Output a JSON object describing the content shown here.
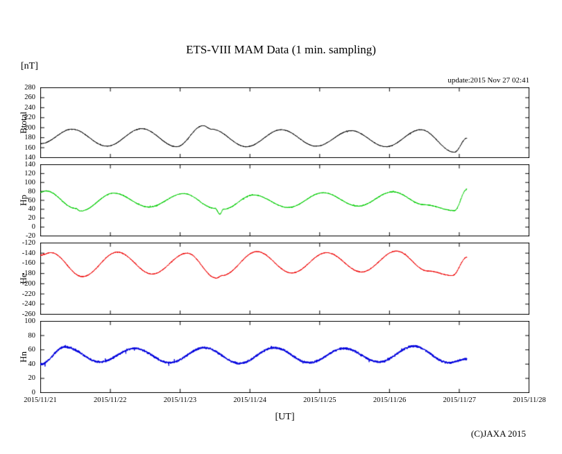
{
  "page": {
    "title": "ETS-VIII MAM Data (1 min. sampling)",
    "unit_label": "[nT]",
    "update_label": "update:2015 Nov 27 02:41",
    "xaxis_label": "[UT]",
    "copyright": "(C)JAXA 2015"
  },
  "chart_data": {
    "type": "line",
    "title": "ETS-VIII MAM Data (1 min. sampling)",
    "xlabel": "[UT]",
    "ylabel": "[nT]",
    "sampling": "1 min",
    "update": "2015 Nov 27 02:41",
    "legend_position": "none",
    "grid": false,
    "x_ticks": [
      "2015/11/21",
      "2015/11/22",
      "2015/11/23",
      "2015/11/24",
      "2015/11/25",
      "2015/11/26",
      "2015/11/27",
      "2015/11/28"
    ],
    "x_range_days": [
      0,
      7
    ],
    "data_end_day": 6.11,
    "panels": [
      {
        "name": "Btotal",
        "color": "#000000",
        "ylim": [
          140,
          280
        ],
        "yticks": [
          280,
          260,
          240,
          220,
          200,
          180,
          160,
          140
        ],
        "keyframes": [
          [
            0,
            168
          ],
          [
            0.45,
            197
          ],
          [
            0.95,
            163
          ],
          [
            1.45,
            198
          ],
          [
            1.95,
            162
          ],
          [
            2.33,
            204
          ],
          [
            2.45,
            197
          ],
          [
            2.95,
            162
          ],
          [
            3.45,
            196
          ],
          [
            3.95,
            163
          ],
          [
            4.45,
            194
          ],
          [
            4.95,
            162
          ],
          [
            5.45,
            196
          ],
          [
            5.93,
            151
          ],
          [
            6.11,
            179
          ]
        ],
        "noise": 0.9
      },
      {
        "name": "Hp",
        "color": "#00cc00",
        "ylim": [
          -20,
          140
        ],
        "yticks": [
          140,
          120,
          100,
          80,
          60,
          40,
          20,
          0,
          -20
        ],
        "keyframes": [
          [
            0,
            78
          ],
          [
            0.08,
            81
          ],
          [
            0.5,
            42
          ],
          [
            0.57,
            36
          ],
          [
            1.05,
            76
          ],
          [
            1.55,
            45
          ],
          [
            2.05,
            75
          ],
          [
            2.5,
            42
          ],
          [
            2.57,
            29
          ],
          [
            2.62,
            40
          ],
          [
            3.05,
            72
          ],
          [
            3.55,
            44
          ],
          [
            4.05,
            77
          ],
          [
            4.55,
            47
          ],
          [
            5.05,
            79
          ],
          [
            5.5,
            50
          ],
          [
            5.93,
            37
          ],
          [
            6.11,
            85
          ]
        ],
        "noise": 1.3
      },
      {
        "name": "He",
        "color": "#ee0000",
        "ylim": [
          -260,
          -120
        ],
        "yticks": [
          -120,
          -140,
          -160,
          -180,
          -200,
          -220,
          -240,
          -260
        ],
        "keyframes": [
          [
            0,
            -144
          ],
          [
            0.15,
            -139
          ],
          [
            0.6,
            -186
          ],
          [
            1.1,
            -138
          ],
          [
            1.6,
            -181
          ],
          [
            2.1,
            -140
          ],
          [
            2.52,
            -189
          ],
          [
            2.6,
            -184
          ],
          [
            3.1,
            -137
          ],
          [
            3.6,
            -179
          ],
          [
            4.1,
            -139
          ],
          [
            4.6,
            -177
          ],
          [
            5.1,
            -136
          ],
          [
            5.55,
            -175
          ],
          [
            5.9,
            -184
          ],
          [
            6.11,
            -148
          ]
        ],
        "noise": 1.1
      },
      {
        "name": "Hn",
        "color": "#0000dd",
        "ylim": [
          0,
          100
        ],
        "yticks": [
          100,
          80,
          60,
          40,
          20,
          0
        ],
        "keyframes": [
          [
            0,
            40
          ],
          [
            0.35,
            64
          ],
          [
            0.85,
            43
          ],
          [
            1.35,
            62
          ],
          [
            1.85,
            42
          ],
          [
            2.35,
            63
          ],
          [
            2.85,
            41
          ],
          [
            3.35,
            63
          ],
          [
            3.85,
            42
          ],
          [
            4.35,
            62
          ],
          [
            4.85,
            43
          ],
          [
            5.35,
            65
          ],
          [
            5.85,
            42
          ],
          [
            6.11,
            47
          ]
        ],
        "noise": 2.0
      }
    ]
  }
}
